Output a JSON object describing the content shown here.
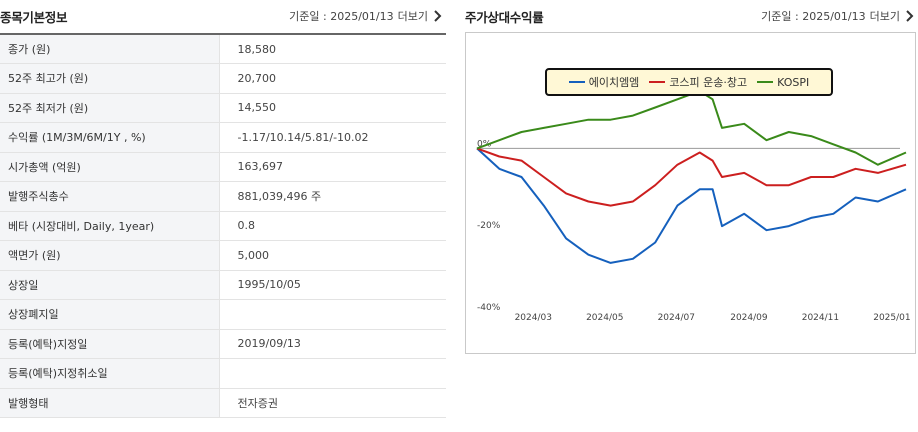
{
  "left_section": {
    "title": "종목기본정보",
    "date_label": "기준일 : 2025/01/13",
    "more_label": "더보기"
  },
  "info_rows": [
    {
      "label": "종가 (원)",
      "value": "18,580"
    },
    {
      "label": "52주 최고가 (원)",
      "value": "20,700"
    },
    {
      "label": "52주 최저가 (원)",
      "value": "14,550"
    },
    {
      "label": "수익률 (1M/3M/6M/1Y , %)",
      "value": "-1.17/10.14/5.81/-10.02"
    },
    {
      "label": "시가총액 (억원)",
      "value": "163,697"
    },
    {
      "label": "발행주식총수",
      "value": "881,039,496 주"
    },
    {
      "label": "베타 (시장대비, Daily, 1year)",
      "value": "0.8"
    },
    {
      "label": "액면가 (원)",
      "value": "5,000"
    },
    {
      "label": "상장일",
      "value": "1995/10/05"
    },
    {
      "label": "상장폐지일",
      "value": ""
    },
    {
      "label": "등록(예탁)지정일",
      "value": "2019/09/13"
    },
    {
      "label": "등록(예탁)지정취소일",
      "value": ""
    },
    {
      "label": "발행형태",
      "value": "전자증권"
    }
  ],
  "right_section": {
    "title": "주가상대수익률",
    "date_label": "기준일 : 2025/01/13",
    "more_label": "더보기"
  },
  "colors": {
    "series1": "#1560bd",
    "series2": "#cc1f1f",
    "series3": "#3a8a1a",
    "zero_line": "#999999"
  },
  "chart_data": {
    "type": "line",
    "x_ticks": [
      "2024/03",
      "2024/05",
      "2024/07",
      "2024/09",
      "2024/11",
      "2025/01"
    ],
    "y_ticks": [
      "0%",
      "-20%",
      "-40%"
    ],
    "ylim": [
      -40,
      4
    ],
    "x": [
      "2024-01-13",
      "2024-02-01",
      "2024-02-20",
      "2024-03-10",
      "2024-03-29",
      "2024-04-17",
      "2024-05-06",
      "2024-05-25",
      "2024-06-13",
      "2024-07-02",
      "2024-07-21",
      "2024-08-01",
      "2024-08-09",
      "2024-08-28",
      "2024-09-16",
      "2024-10-05",
      "2024-10-24",
      "2024-11-12",
      "2024-12-01",
      "2024-12-20",
      "2025-01-13"
    ],
    "series": [
      {
        "name": "에이치엠엠",
        "values": [
          0,
          -5,
          -7,
          -14,
          -22,
          -26,
          -28,
          -27,
          -23,
          -14,
          -10,
          -10,
          -19,
          -16,
          -20,
          -19,
          -17,
          -16,
          -12,
          -13,
          -10
        ]
      },
      {
        "name": "코스피 운송·창고",
        "values": [
          0,
          -2,
          -3,
          -7,
          -11,
          -13,
          -14,
          -13,
          -9,
          -4,
          -1,
          -3,
          -7,
          -6,
          -9,
          -9,
          -7,
          -7,
          -5,
          -6,
          -4
        ]
      },
      {
        "name": "KOSPI",
        "values": [
          0,
          2,
          4,
          5,
          6,
          7,
          7,
          8,
          10,
          12,
          14,
          12,
          5,
          6,
          2,
          4,
          3,
          1,
          -1,
          -4,
          -1
        ]
      }
    ]
  }
}
